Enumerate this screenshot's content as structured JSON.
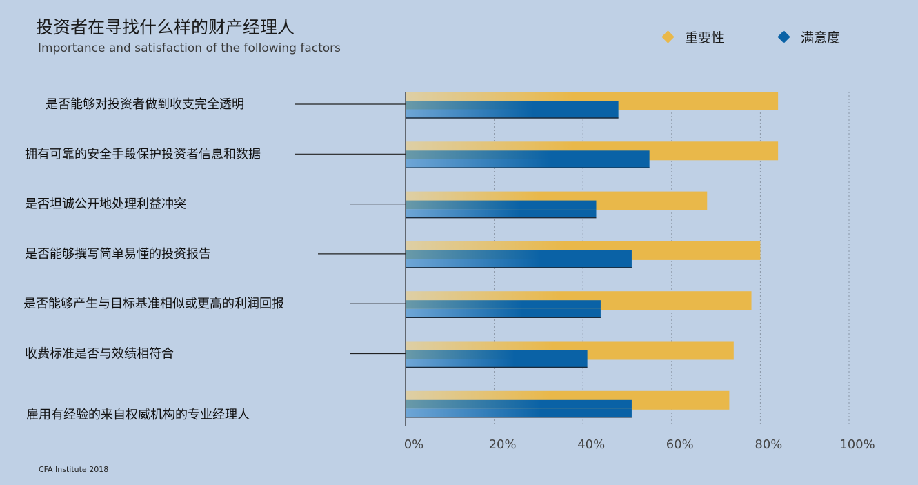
{
  "header": {
    "title": "投资者在寻找什么样的财产经理人",
    "subtitle": "Importance and satisfaction of the following factors"
  },
  "source": "CFA Institute 2018",
  "colors": {
    "importance": "#e9b84a",
    "satisfaction": "#0a62a6",
    "background": "#bfd0e5"
  },
  "chart_data": {
    "type": "bar",
    "orientation": "horizontal",
    "categories": [
      "是否能够对投资者做到收支完全透明",
      "拥有可靠的安全手段保护投资者信息和数据",
      "是否坦诚公开地处理利益冲突",
      "是否能够撰写简单易懂的投资报告",
      "是否能够产生与目标基准相似或更高的利润回报",
      "收费标准是否与效绩相符合",
      "雇用有经验的来自权威机构的专业经理人"
    ],
    "series": [
      {
        "name": "重要性",
        "values": [
          84,
          84,
          68,
          80,
          78,
          74,
          73
        ]
      },
      {
        "name": "满意度",
        "values": [
          48,
          55,
          43,
          51,
          44,
          41,
          51
        ]
      }
    ],
    "xlim": [
      0,
      100
    ],
    "xticks": [
      "0%",
      "20%",
      "40%",
      "60%",
      "80%",
      "100%"
    ],
    "grid": true,
    "legend_position": "top-right"
  }
}
